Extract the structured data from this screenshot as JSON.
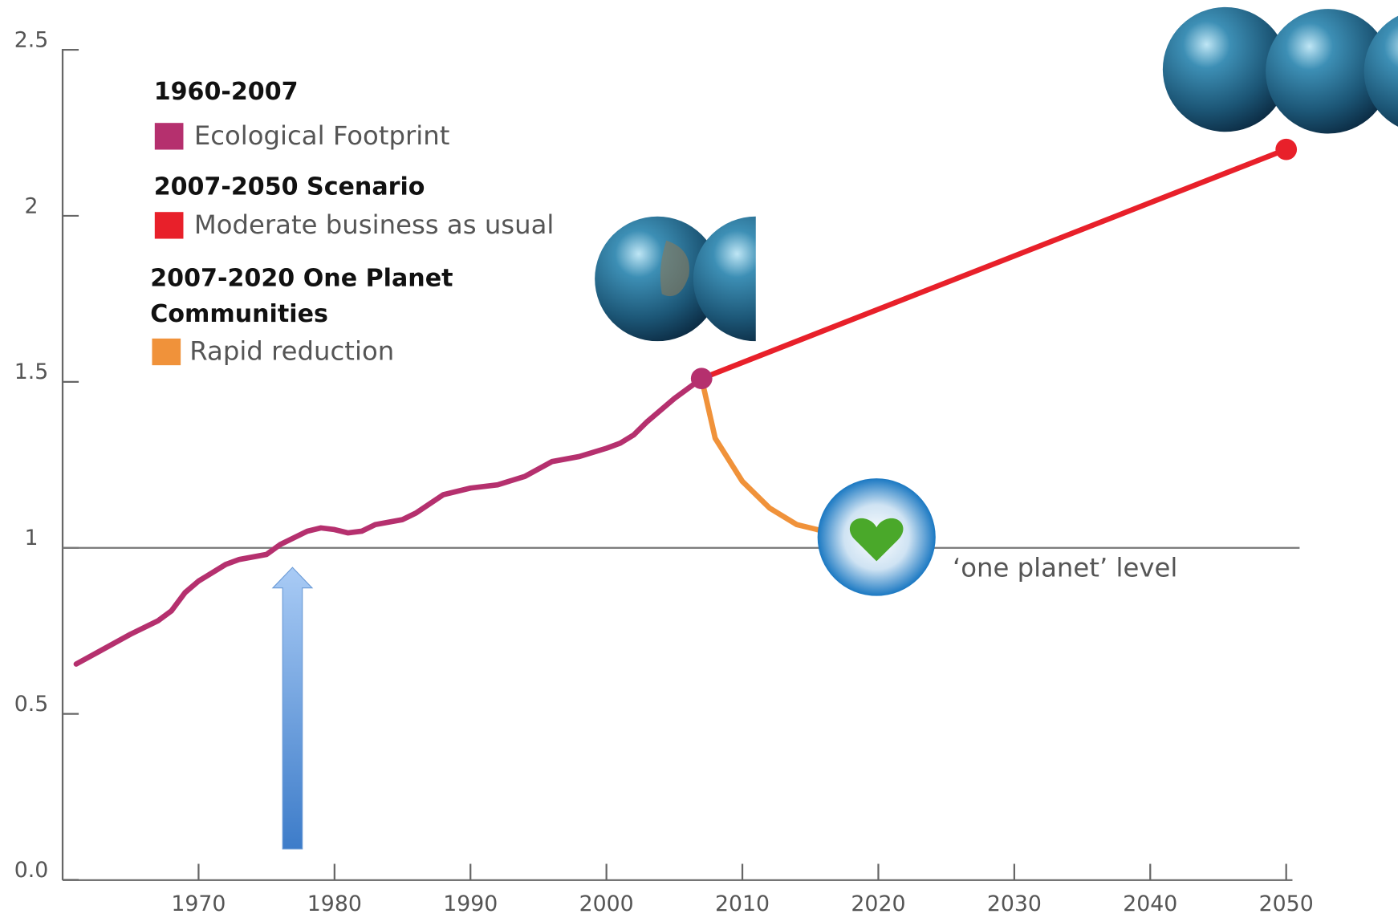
{
  "chart_data": {
    "type": "line",
    "xlim": [
      1960,
      2050
    ],
    "xticks": [
      1970,
      1980,
      1990,
      2000,
      2010,
      2020,
      2030,
      2040,
      2050
    ],
    "ylim": [
      0,
      2.5
    ],
    "yticks": [
      {
        "value": 0,
        "label": "0.0"
      },
      {
        "value": 0.5,
        "label": "0.5"
      },
      1,
      1.5,
      2,
      2.5
    ],
    "reference_line": {
      "value": 1,
      "label": "‘one planet’ level"
    },
    "series": [
      {
        "group": "1960-2007",
        "name": "Ecological Footprint",
        "color": "#b5306e",
        "x": [
          1961,
          1963,
          1965,
          1967,
          1968,
          1969,
          1970,
          1972,
          1973,
          1975,
          1976,
          1978,
          1979,
          1980,
          1981,
          1982,
          1983,
          1985,
          1986,
          1988,
          1990,
          1992,
          1994,
          1996,
          1998,
          2000,
          2001,
          2002,
          2003,
          2005,
          2007
        ],
        "values": [
          0.65,
          0.695,
          0.74,
          0.78,
          0.81,
          0.865,
          0.9,
          0.95,
          0.965,
          0.98,
          1.01,
          1.05,
          1.06,
          1.055,
          1.045,
          1.05,
          1.07,
          1.085,
          1.105,
          1.16,
          1.18,
          1.19,
          1.215,
          1.26,
          1.275,
          1.3,
          1.315,
          1.34,
          1.38,
          1.45,
          1.51
        ]
      },
      {
        "group": "2007-2050 Scenario",
        "name": "Moderate business as usual",
        "color": "#e8202a",
        "x": [
          2007,
          2050
        ],
        "values": [
          1.51,
          2.2
        ]
      },
      {
        "group": "2007-2020 One Planet Communities Scenario",
        "name": "Rapid reduction",
        "color": "#f0923a",
        "x": [
          2007,
          2008,
          2010,
          2012,
          2014,
          2016
        ],
        "values": [
          1.51,
          1.33,
          1.2,
          1.12,
          1.07,
          1.05
        ]
      }
    ]
  }
}
